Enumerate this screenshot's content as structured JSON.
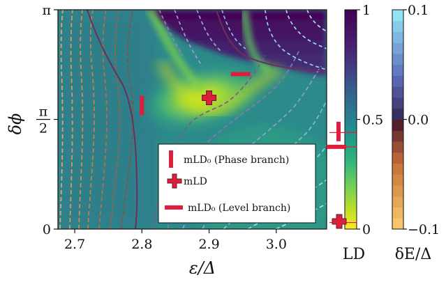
{
  "chart_data": [
    {
      "type": "heatmap",
      "title": "",
      "xlabel": "ε/Δ",
      "ylabel": "δϕ",
      "xlim": [
        2.675,
        3.075
      ],
      "ylim": [
        0,
        3.14159
      ],
      "xticks": [
        2.7,
        2.8,
        2.9,
        3.0
      ],
      "xtick_labels": [
        "2.7",
        "2.8",
        "2.9",
        "3.0"
      ],
      "yticks": [
        0,
        1.5708,
        3.14159
      ],
      "ytick_labels": [
        "0",
        "π/2",
        "π"
      ],
      "colormap": "viridis",
      "contour_style": "dashed, colored by δE/Δ (orange negative, blue positive), solid purple for δE = 0",
      "legend_position": "lower-right",
      "legend": [
        {
          "marker": "vertical-bar",
          "label": "mLD₀ (Phase branch)"
        },
        {
          "marker": "plus",
          "label": "mLD"
        },
        {
          "marker": "horizontal-bar",
          "label": "mLD₀ (Level branch)"
        }
      ],
      "markers": [
        {
          "name": "phase-branch",
          "x": 2.8,
          "y": 1.77
        },
        {
          "name": "mld",
          "x": 2.9,
          "y": 1.88
        },
        {
          "name": "level-branch",
          "x": 2.947,
          "y": 2.22
        }
      ],
      "marker_color": "#dc1f3c"
    },
    {
      "type": "colorbar",
      "label": "LD",
      "colormap": "viridis",
      "range": [
        0,
        1
      ],
      "ticks": [
        0,
        0.5,
        1
      ],
      "tick_labels": [
        "0",
        "0.5",
        "1"
      ],
      "indicators": [
        {
          "marker": "vertical-bar",
          "value": 0.445
        },
        {
          "marker": "horizontal-bar",
          "value": 0.375
        },
        {
          "marker": "plus",
          "value": 0.035
        }
      ],
      "indicator_lines": [
        0.44,
        0.375,
        0.03
      ]
    },
    {
      "type": "colorbar",
      "label": "δE/Δ",
      "range": [
        -0.1,
        0.1
      ],
      "ticks": [
        -0.1,
        0.0,
        0.1
      ],
      "tick_labels": [
        "−0.1",
        "0.0",
        "0.1"
      ],
      "levels": 20,
      "colormap": "orange-to-dark-to-cyan"
    }
  ],
  "colors": {
    "marker": "#dc1f3c",
    "zero_contour": "#6b2f5c"
  }
}
